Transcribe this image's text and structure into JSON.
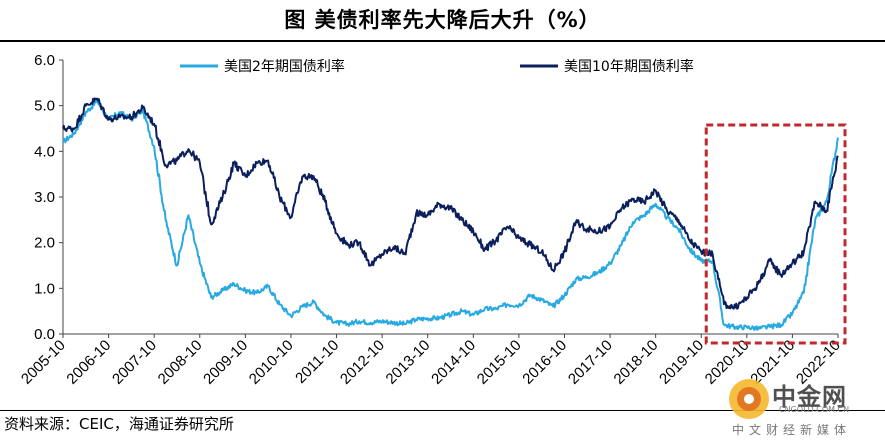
{
  "title": "图  美债利率先大降后大升（%）",
  "source": "资料来源：CEIC，海通证券研究所",
  "watermark": {
    "name": "中金网",
    "domain": "CNGOLD.COM.CN",
    "subtitle": "中文财经新媒体"
  },
  "colors": {
    "series_2y": "#29a9e1",
    "series_10y": "#0b1f5c",
    "highlight_box": "#c0282d"
  },
  "chart_data": {
    "type": "line",
    "title": "美债利率先大降后大升（%）",
    "xlabel": "",
    "ylabel": "",
    "ylim": [
      0,
      6
    ],
    "yticks": [
      "0.0",
      "1.0",
      "2.0",
      "3.0",
      "4.0",
      "5.0",
      "6.0"
    ],
    "xticks": [
      "2005-10",
      "2006-10",
      "2007-10",
      "2008-10",
      "2009-10",
      "2010-10",
      "2011-10",
      "2012-10",
      "2013-10",
      "2014-10",
      "2015-10",
      "2016-10",
      "2017-10",
      "2018-10",
      "2019-10",
      "2020-10",
      "2021-10",
      "2022-10"
    ],
    "xlim": [
      "2005-10",
      "2022-10"
    ],
    "grid": false,
    "legend_position": "top",
    "highlight_range": [
      "2019-10",
      "2022-10"
    ],
    "series": [
      {
        "name": "美国2年期国债利率",
        "x": [
          "2005-10",
          "2006-01",
          "2006-04",
          "2006-07",
          "2006-10",
          "2007-01",
          "2007-04",
          "2007-07",
          "2007-10",
          "2008-01",
          "2008-04",
          "2008-07",
          "2008-10",
          "2009-01",
          "2009-04",
          "2009-07",
          "2009-10",
          "2010-01",
          "2010-04",
          "2010-07",
          "2010-10",
          "2011-01",
          "2011-04",
          "2011-07",
          "2011-10",
          "2012-01",
          "2012-04",
          "2012-07",
          "2012-10",
          "2013-01",
          "2013-04",
          "2013-07",
          "2013-10",
          "2014-01",
          "2014-04",
          "2014-07",
          "2014-10",
          "2015-01",
          "2015-04",
          "2015-07",
          "2015-10",
          "2016-01",
          "2016-04",
          "2016-07",
          "2016-10",
          "2017-01",
          "2017-04",
          "2017-07",
          "2017-10",
          "2018-01",
          "2018-04",
          "2018-07",
          "2018-10",
          "2019-01",
          "2019-04",
          "2019-07",
          "2019-10",
          "2020-01",
          "2020-04",
          "2020-07",
          "2020-10",
          "2021-01",
          "2021-04",
          "2021-07",
          "2021-10",
          "2022-01",
          "2022-04",
          "2022-07",
          "2022-10"
        ],
        "values": [
          4.2,
          4.4,
          4.85,
          5.1,
          4.7,
          4.85,
          4.7,
          4.9,
          4.1,
          2.5,
          1.5,
          2.6,
          1.55,
          0.8,
          0.95,
          1.1,
          0.95,
          0.9,
          1.05,
          0.65,
          0.4,
          0.6,
          0.7,
          0.4,
          0.25,
          0.22,
          0.28,
          0.25,
          0.28,
          0.25,
          0.22,
          0.32,
          0.34,
          0.35,
          0.42,
          0.5,
          0.42,
          0.55,
          0.55,
          0.65,
          0.63,
          0.85,
          0.75,
          0.6,
          0.85,
          1.2,
          1.25,
          1.35,
          1.55,
          1.95,
          2.45,
          2.6,
          2.85,
          2.55,
          2.3,
          1.85,
          1.6,
          1.6,
          0.2,
          0.15,
          0.15,
          0.12,
          0.16,
          0.2,
          0.45,
          0.9,
          2.5,
          2.9,
          4.3
        ]
      },
      {
        "name": "美国10年期国债利率",
        "x": [
          "2005-10",
          "2006-01",
          "2006-04",
          "2006-07",
          "2006-10",
          "2007-01",
          "2007-04",
          "2007-07",
          "2007-10",
          "2008-01",
          "2008-04",
          "2008-07",
          "2008-10",
          "2009-01",
          "2009-04",
          "2009-07",
          "2009-10",
          "2010-01",
          "2010-04",
          "2010-07",
          "2010-10",
          "2011-01",
          "2011-04",
          "2011-07",
          "2011-10",
          "2012-01",
          "2012-04",
          "2012-07",
          "2012-10",
          "2013-01",
          "2013-04",
          "2013-07",
          "2013-10",
          "2014-01",
          "2014-04",
          "2014-07",
          "2014-10",
          "2015-01",
          "2015-04",
          "2015-07",
          "2015-10",
          "2016-01",
          "2016-04",
          "2016-07",
          "2016-10",
          "2017-01",
          "2017-04",
          "2017-07",
          "2017-10",
          "2018-01",
          "2018-04",
          "2018-07",
          "2018-10",
          "2019-01",
          "2019-04",
          "2019-07",
          "2019-10",
          "2020-01",
          "2020-04",
          "2020-07",
          "2020-10",
          "2021-01",
          "2021-04",
          "2021-07",
          "2021-10",
          "2022-01",
          "2022-04",
          "2022-07",
          "2022-10"
        ],
        "values": [
          4.5,
          4.5,
          5.0,
          5.15,
          4.7,
          4.75,
          4.75,
          4.95,
          4.6,
          3.7,
          3.8,
          4.05,
          3.75,
          2.4,
          3.0,
          3.75,
          3.45,
          3.75,
          3.8,
          3.0,
          2.55,
          3.45,
          3.45,
          2.9,
          2.2,
          1.95,
          2.0,
          1.5,
          1.75,
          1.9,
          1.75,
          2.65,
          2.6,
          2.85,
          2.75,
          2.5,
          2.25,
          1.85,
          2.05,
          2.35,
          2.1,
          1.95,
          1.8,
          1.4,
          1.8,
          2.45,
          2.3,
          2.25,
          2.35,
          2.75,
          2.95,
          2.9,
          3.15,
          2.7,
          2.5,
          2.05,
          1.8,
          1.75,
          0.65,
          0.58,
          0.8,
          1.1,
          1.6,
          1.3,
          1.55,
          1.8,
          2.9,
          2.7,
          3.9
        ]
      }
    ]
  }
}
